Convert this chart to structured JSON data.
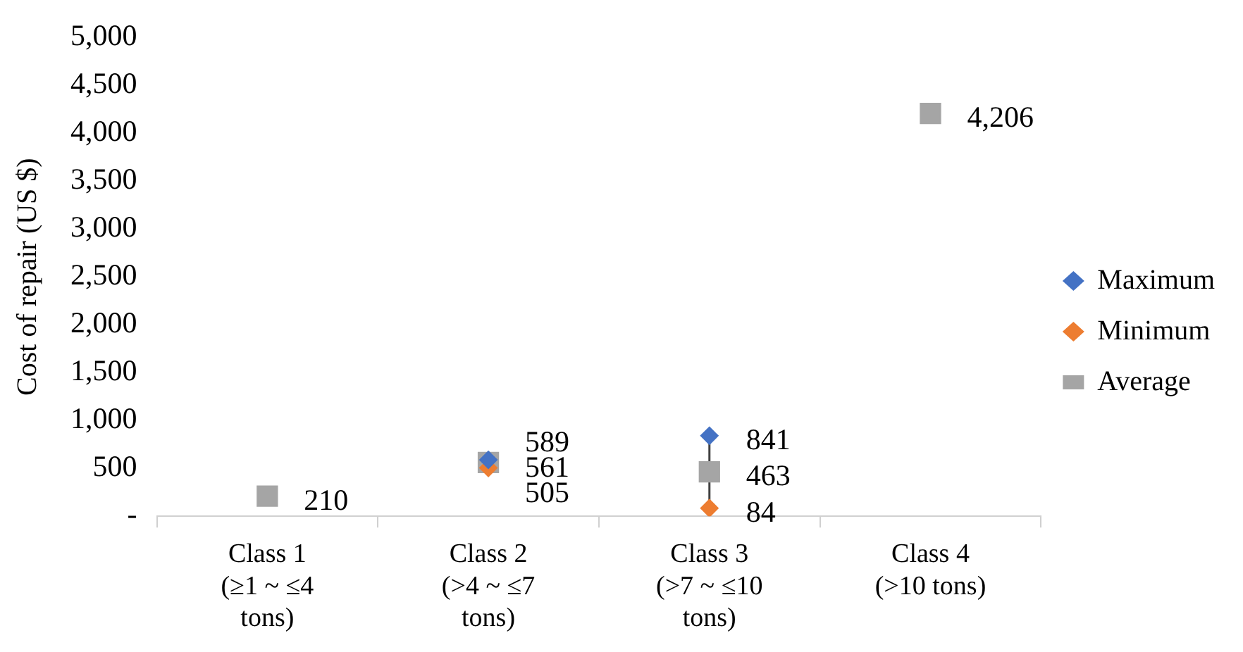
{
  "chart_data": {
    "type": "scatter",
    "ylabel": "Cost of repair (US $)",
    "categories": [
      "Class 1\n(≥1 ~ ≤4\ntons)",
      "Class 2\n(>4 ~ ≤7\ntons)",
      "Class 3\n(>7 ~ ≤10\ntons)",
      "Class 4\n(>10 tons)"
    ],
    "series": [
      {
        "name": "Maximum",
        "color": "#4472c4",
        "marker": "diamond",
        "values": [
          null,
          589,
          841,
          null
        ],
        "value_labels": [
          null,
          "589",
          "841",
          null
        ]
      },
      {
        "name": "Minimum",
        "color": "#ed7d31",
        "marker": "diamond",
        "values": [
          null,
          505,
          84,
          null
        ],
        "value_labels": [
          null,
          "505",
          "84",
          null
        ]
      },
      {
        "name": "Average",
        "color": "#a5a5a5",
        "marker": "square",
        "values": [
          210,
          561,
          463,
          4206
        ],
        "value_labels": [
          "210",
          "561",
          "463",
          "4,206"
        ]
      }
    ],
    "ylim": [
      0,
      5000
    ],
    "yticks": [
      {
        "value": 0,
        "label": "-"
      },
      {
        "value": 500,
        "label": "500"
      },
      {
        "value": 1000,
        "label": "1,000"
      },
      {
        "value": 1500,
        "label": "1,500"
      },
      {
        "value": 2000,
        "label": "2,000"
      },
      {
        "value": 2500,
        "label": "2,500"
      },
      {
        "value": 3000,
        "label": "3,000"
      },
      {
        "value": 3500,
        "label": "3,500"
      },
      {
        "value": 4000,
        "label": "4,000"
      },
      {
        "value": 4500,
        "label": "4,500"
      },
      {
        "value": 5000,
        "label": "5,000"
      }
    ],
    "grid": false,
    "legend": "right"
  }
}
